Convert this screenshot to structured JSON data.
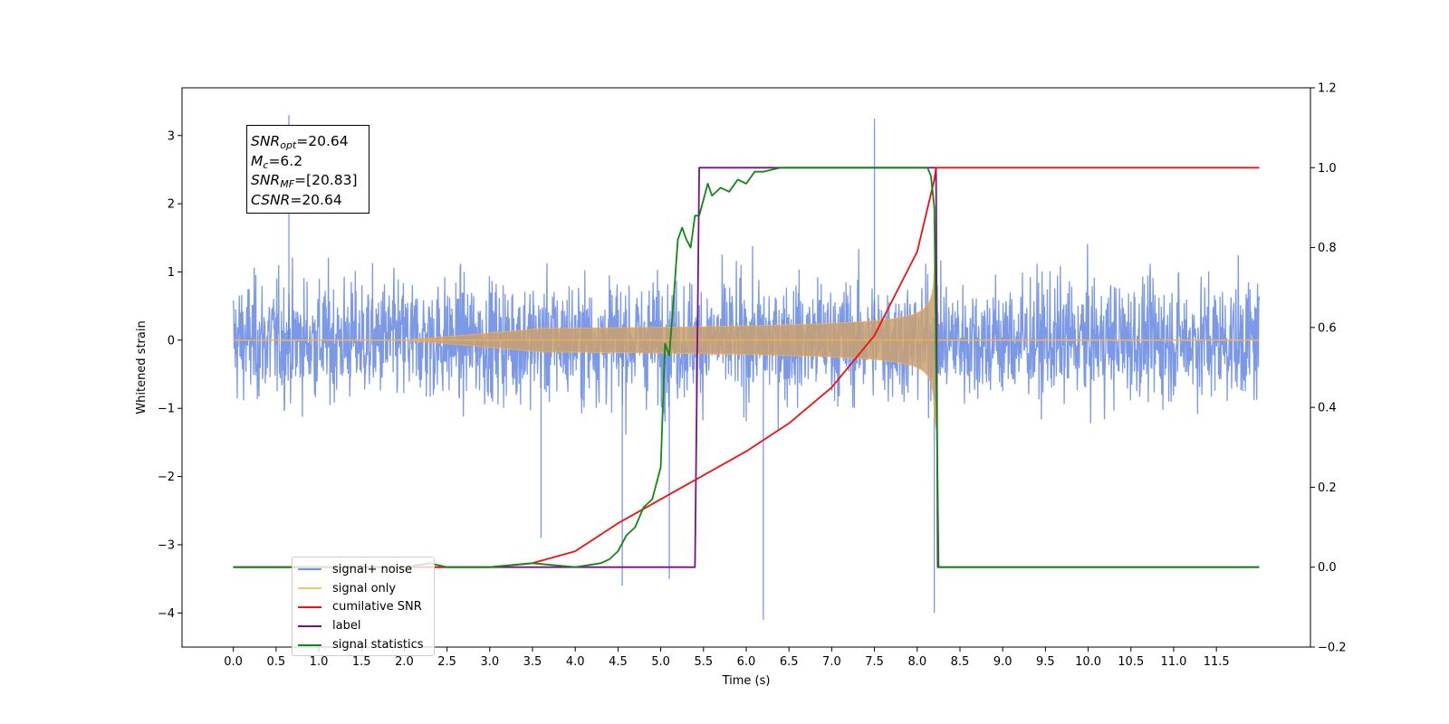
{
  "chart_data": {
    "type": "line",
    "xlabel": "Time (s)",
    "ylabel": "Whitened strain",
    "xlim": [
      -0.6,
      12.6
    ],
    "ylim": [
      -4.5,
      3.7
    ],
    "y2lim": [
      -0.2,
      1.2
    ],
    "x_ticks": [
      "0.0",
      "0.5",
      "1.0",
      "1.5",
      "2.0",
      "2.5",
      "3.0",
      "3.5",
      "4.0",
      "4.5",
      "5.0",
      "5.5",
      "6.0",
      "6.5",
      "7.0",
      "7.5",
      "8.0",
      "8.5",
      "9.0",
      "9.5",
      "10.0",
      "10.5",
      "11.0",
      "11.5"
    ],
    "y_ticks": [
      "3",
      "2",
      "1",
      "0",
      "−1",
      "−2",
      "−3",
      "−4"
    ],
    "y2_ticks": [
      "1.2",
      "1.0",
      "0.8",
      "0.6",
      "0.4",
      "0.2",
      "0.0",
      "−0.2"
    ],
    "grid": false,
    "legend_placement": "lower-left",
    "stats_box": {
      "snr_opt_base": "SNR",
      "snr_opt_sub": "opt",
      "snr_opt_value": "=20.64",
      "mc_base": "M",
      "mc_sub": "c",
      "mc_value": "=6.2",
      "snr_mf_base": "SNR",
      "snr_mf_sub": "MF",
      "snr_mf_value": "=[20.83]",
      "csnr_base": "CSNR",
      "csnr_value": "=20.64"
    },
    "noise": {
      "x_range": [
        0.0,
        12.0
      ],
      "typical_amplitude": 1.4,
      "peaks": [
        [
          0.65,
          3.3
        ],
        [
          7.5,
          3.25
        ],
        [
          6.2,
          -4.1
        ],
        [
          8.2,
          -4.0
        ],
        [
          5.1,
          -3.5
        ],
        [
          4.55,
          -3.6
        ],
        [
          3.6,
          -2.9
        ]
      ]
    },
    "chirp": {
      "start_time": 2.0,
      "merger_time": 8.22,
      "max_amplitude": 1.3
    },
    "series": [
      {
        "name": "signal+ noise",
        "color": "#5a7fe0",
        "axis": "left"
      },
      {
        "name": "signal only",
        "color": "#ffb347",
        "axis": "left"
      },
      {
        "name": "cumilative SNR",
        "color": "#ee1111",
        "axis": "right",
        "x": [
          0.0,
          3.0,
          3.5,
          4.0,
          4.5,
          5.0,
          5.5,
          6.0,
          6.5,
          7.0,
          7.5,
          8.0,
          8.2,
          8.22,
          12.0
        ],
        "y": [
          0.0,
          0.0,
          0.01,
          0.04,
          0.11,
          0.17,
          0.23,
          0.29,
          0.36,
          0.45,
          0.58,
          0.79,
          0.97,
          1.0,
          1.0
        ]
      },
      {
        "name": "label",
        "color": "#771188",
        "axis": "right",
        "x": [
          0.0,
          5.4,
          5.45,
          8.22,
          8.24,
          12.0
        ],
        "y": [
          0.0,
          0.0,
          1.0,
          1.0,
          0.0,
          0.0
        ]
      },
      {
        "name": "signal statistics",
        "color": "#118811",
        "axis": "right",
        "x": [
          0.0,
          2.0,
          2.3,
          2.5,
          3.0,
          3.5,
          4.0,
          4.3,
          4.4,
          4.5,
          4.6,
          4.7,
          4.8,
          4.9,
          5.0,
          5.05,
          5.1,
          5.15,
          5.2,
          5.25,
          5.3,
          5.35,
          5.4,
          5.45,
          5.5,
          5.55,
          5.6,
          5.7,
          5.8,
          5.9,
          6.0,
          6.1,
          6.2,
          6.4,
          6.6,
          8.12,
          8.16,
          8.2,
          8.25,
          8.3,
          12.0
        ],
        "y": [
          0.0,
          0.0,
          0.01,
          0.0,
          0.0,
          0.01,
          0.0,
          0.01,
          0.02,
          0.04,
          0.08,
          0.1,
          0.15,
          0.17,
          0.25,
          0.56,
          0.53,
          0.67,
          0.82,
          0.85,
          0.82,
          0.8,
          0.88,
          0.88,
          0.92,
          0.96,
          0.93,
          0.95,
          0.94,
          0.97,
          0.96,
          0.99,
          0.99,
          1.0,
          1.0,
          1.0,
          0.98,
          0.9,
          0.0,
          0.0,
          0.0
        ]
      }
    ],
    "legend": [
      "signal+ noise",
      "signal only",
      "cumilative SNR",
      "label",
      "signal statistics"
    ]
  }
}
